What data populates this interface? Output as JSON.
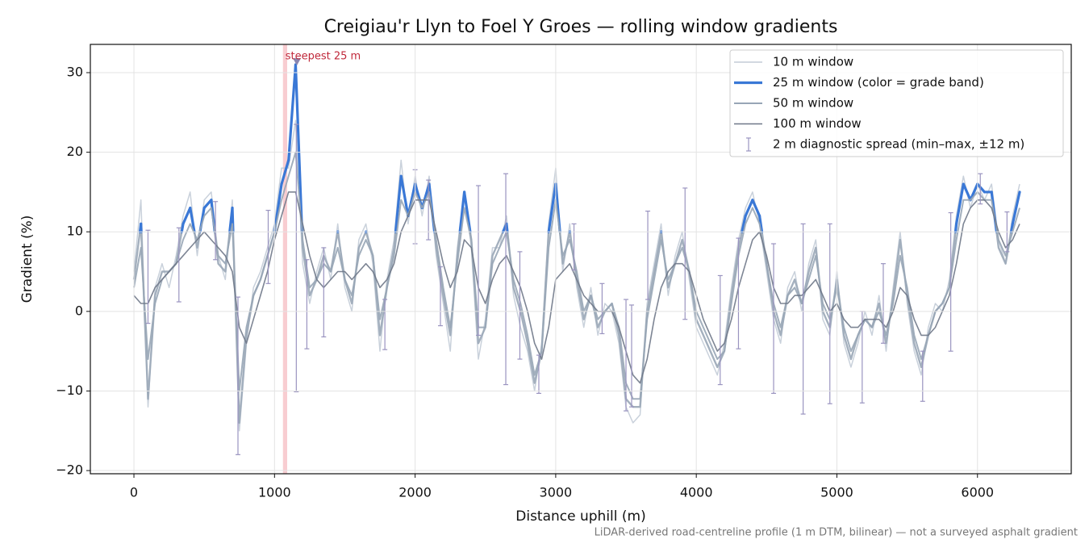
{
  "chart_data": {
    "type": "line",
    "title": "Creigiau'r Llyn to Foel Y Groes — rolling window gradients",
    "xlabel": "Distance uphill (m)",
    "ylabel": "Gradient (%)",
    "footnote": "LiDAR-derived road-centreline profile (1 m DTM, bilinear) — not a surveyed asphalt gradient",
    "xlim": [
      -310,
      6667
    ],
    "ylim": [
      -20.4,
      33.55
    ],
    "xticks": [
      0,
      1000,
      2000,
      3000,
      4000,
      5000,
      6000
    ],
    "yticks": [
      {
        "value": -20,
        "label": "−20"
      },
      {
        "value": -10,
        "label": "−10"
      },
      0,
      10,
      20,
      30
    ],
    "grid": true,
    "legend": "upper right",
    "x": [
      0,
      50,
      100,
      150,
      200,
      250,
      300,
      350,
      400,
      450,
      500,
      550,
      600,
      650,
      700,
      750,
      800,
      850,
      900,
      950,
      1000,
      1050,
      1100,
      1150,
      1200,
      1250,
      1300,
      1350,
      1400,
      1450,
      1500,
      1550,
      1600,
      1650,
      1700,
      1750,
      1800,
      1850,
      1900,
      1950,
      2000,
      2050,
      2100,
      2150,
      2200,
      2250,
      2300,
      2350,
      2400,
      2450,
      2500,
      2550,
      2600,
      2650,
      2700,
      2750,
      2800,
      2850,
      2900,
      2950,
      3000,
      3050,
      3100,
      3150,
      3200,
      3250,
      3300,
      3350,
      3400,
      3450,
      3500,
      3550,
      3600,
      3650,
      3700,
      3750,
      3800,
      3850,
      3900,
      3950,
      4000,
      4050,
      4100,
      4150,
      4200,
      4250,
      4300,
      4350,
      4400,
      4450,
      4500,
      4550,
      4600,
      4650,
      4700,
      4750,
      4800,
      4850,
      4900,
      4950,
      5000,
      5050,
      5100,
      5150,
      5200,
      5250,
      5300,
      5350,
      5400,
      5450,
      5500,
      5550,
      5600,
      5650,
      5700,
      5750,
      5800,
      5850,
      5900,
      5950,
      6000,
      6050,
      6100,
      6150,
      6200,
      6250,
      6300
    ],
    "series": [
      {
        "name": "10 m window",
        "color": "#c3ccd7",
        "width": 1.5,
        "values": [
          5,
          14,
          -12,
          3,
          6,
          3,
          7,
          12,
          15,
          7,
          14,
          15,
          7,
          4,
          14,
          -15,
          -4,
          3,
          5,
          8,
          11,
          18,
          18,
          24,
          6,
          1,
          5,
          8,
          4,
          11,
          3,
          0,
          9,
          11,
          6,
          -5,
          4,
          9,
          19,
          11,
          17,
          12,
          17,
          7,
          1,
          -5,
          8,
          15,
          8,
          -6,
          -1,
          8,
          8,
          12,
          2,
          -2,
          -5,
          -10,
          -4,
          11,
          18,
          5,
          11,
          3,
          -2,
          3,
          -3,
          1,
          0,
          -4,
          -12,
          -14,
          -13,
          1,
          6,
          11,
          2,
          7,
          10,
          4,
          -2,
          -4,
          -6,
          -8,
          -4,
          3,
          9,
          13,
          15,
          11,
          5,
          -1,
          -4,
          3,
          5,
          0,
          6,
          9,
          -1,
          -3,
          5,
          -4,
          -7,
          -4,
          0,
          -3,
          2,
          -5,
          3,
          10,
          1,
          -5,
          -8,
          -2,
          1,
          0,
          4,
          12,
          17,
          13,
          16,
          14,
          16,
          9,
          6,
          12,
          16
        ]
      },
      {
        "name": "25 m window (color = grade band)",
        "color": "#9aa7b7",
        "width": 2.4,
        "grade_band": {
          "from": 10,
          "color": "#3a78d6"
        },
        "values": [
          4,
          11,
          -11,
          2,
          5,
          5,
          6,
          11,
          13,
          8,
          13,
          14,
          6,
          5,
          13,
          -14,
          -3,
          2,
          4,
          7,
          10,
          16,
          19,
          31,
          8,
          2,
          4,
          7,
          5,
          10,
          4,
          1,
          8,
          10,
          7,
          -3,
          3,
          8,
          17,
          12,
          16,
          13,
          16,
          8,
          2,
          -3,
          7,
          15,
          9,
          -4,
          -2,
          7,
          9,
          11,
          3,
          0,
          -4,
          -9,
          -5,
          10,
          16,
          6,
          10,
          4,
          -1,
          2,
          -2,
          0,
          1,
          -3,
          -11,
          -12,
          -12,
          0,
          5,
          10,
          3,
          6,
          9,
          5,
          -1,
          -3,
          -5,
          -7,
          -5,
          2,
          8,
          12,
          14,
          12,
          6,
          0,
          -3,
          2,
          4,
          1,
          5,
          8,
          0,
          -2,
          4,
          -3,
          -6,
          -3,
          -1,
          -2,
          1,
          -4,
          2,
          9,
          2,
          -4,
          -7,
          -3,
          0,
          1,
          3,
          11,
          16,
          14,
          16,
          15,
          15,
          8,
          6,
          11,
          15
        ]
      },
      {
        "name": "50 m window",
        "color": "#98a6b6",
        "width": 2,
        "values": [
          3,
          8,
          -6,
          1,
          4,
          5,
          6,
          9,
          11,
          9,
          12,
          13,
          7,
          6,
          11,
          -10,
          -2,
          2,
          4,
          7,
          10,
          14,
          17,
          20,
          9,
          3,
          4,
          6,
          5,
          8,
          4,
          2,
          7,
          9,
          7,
          -1,
          3,
          7,
          14,
          12,
          15,
          13,
          15,
          9,
          3,
          -2,
          6,
          13,
          9,
          -2,
          -2,
          6,
          8,
          10,
          4,
          1,
          -3,
          -8,
          -5,
          8,
          14,
          7,
          9,
          5,
          0,
          2,
          -1,
          0,
          1,
          -2,
          -9,
          -11,
          -11,
          -1,
          4,
          9,
          4,
          6,
          8,
          5,
          0,
          -2,
          -4,
          -6,
          -5,
          1,
          7,
          11,
          13,
          11,
          6,
          1,
          -2,
          2,
          3,
          1,
          4,
          7,
          1,
          -1,
          3,
          -2,
          -5,
          -3,
          -1,
          -2,
          0,
          -3,
          1,
          7,
          3,
          -3,
          -6,
          -3,
          0,
          1,
          3,
          9,
          14,
          14,
          15,
          14,
          14,
          9,
          7,
          10,
          13
        ]
      },
      {
        "name": "100 m window",
        "color": "#6f7888",
        "width": 1.6,
        "values": [
          2,
          1,
          1,
          3,
          4,
          5,
          6,
          7,
          8,
          9,
          10,
          9,
          8,
          7,
          5,
          -2,
          -4,
          -1,
          2,
          5,
          9,
          12,
          15,
          15,
          11,
          7,
          4,
          3,
          4,
          5,
          5,
          4,
          5,
          6,
          5,
          3,
          4,
          6,
          10,
          12,
          14,
          14,
          14,
          10,
          6,
          3,
          5,
          9,
          8,
          3,
          1,
          4,
          6,
          7,
          5,
          3,
          0,
          -4,
          -6,
          -2,
          4,
          5,
          6,
          4,
          2,
          1,
          0,
          0,
          0,
          -2,
          -5,
          -8,
          -9,
          -6,
          -1,
          3,
          5,
          6,
          6,
          5,
          2,
          -1,
          -3,
          -5,
          -4,
          -1,
          3,
          6,
          9,
          10,
          7,
          3,
          1,
          1,
          2,
          2,
          3,
          4,
          2,
          0,
          1,
          -1,
          -2,
          -2,
          -1,
          -1,
          -1,
          -2,
          0,
          3,
          2,
          -1,
          -3,
          -3,
          -2,
          0,
          2,
          6,
          11,
          13,
          14,
          14,
          13,
          10,
          8,
          9,
          11
        ]
      }
    ],
    "spread": {
      "name": "2 m diagnostic spread (min–max, ±12 m)",
      "color": "#9a94c0",
      "x": [
        100,
        320,
        580,
        740,
        955,
        1155,
        1230,
        1350,
        1785,
        2000,
        2095,
        2180,
        2450,
        2645,
        2745,
        2880,
        3130,
        3330,
        3500,
        3540,
        3655,
        3920,
        4170,
        4300,
        4550,
        4760,
        4950,
        5180,
        5330,
        5610,
        5810,
        6020,
        6210
      ],
      "min": [
        -1.5,
        1.2,
        6.5,
        -18,
        3.5,
        -10.1,
        -4.7,
        -3.2,
        -4.8,
        8.5,
        9,
        -1.8,
        -3,
        -9.2,
        -6,
        -10.3,
        5.2,
        -2.8,
        -12.5,
        -12,
        1.5,
        -1,
        -9.2,
        -4.7,
        -10.3,
        -12.9,
        -11.6,
        -11.5,
        -4,
        -11.3,
        -5,
        13.5,
        7.5
      ],
      "max": [
        10.2,
        10.5,
        13.8,
        1.8,
        12.7,
        23.5,
        6.5,
        8,
        1.5,
        17.8,
        16.5,
        5.6,
        15.8,
        17.3,
        7.5,
        -5.5,
        11,
        3.5,
        1.5,
        0.8,
        12.6,
        15.5,
        4.5,
        9.2,
        8.5,
        11,
        11,
        0,
        6,
        -5,
        12.4,
        17.3,
        12.5
      ]
    },
    "highlight": {
      "from": 1060,
      "to": 1090,
      "color": "#f5b8bd"
    },
    "steepest": {
      "x": 1159,
      "y": 31.3,
      "label": "steepest 25 m",
      "color": "#c0283a",
      "marker_color": "#8a86b0"
    }
  }
}
